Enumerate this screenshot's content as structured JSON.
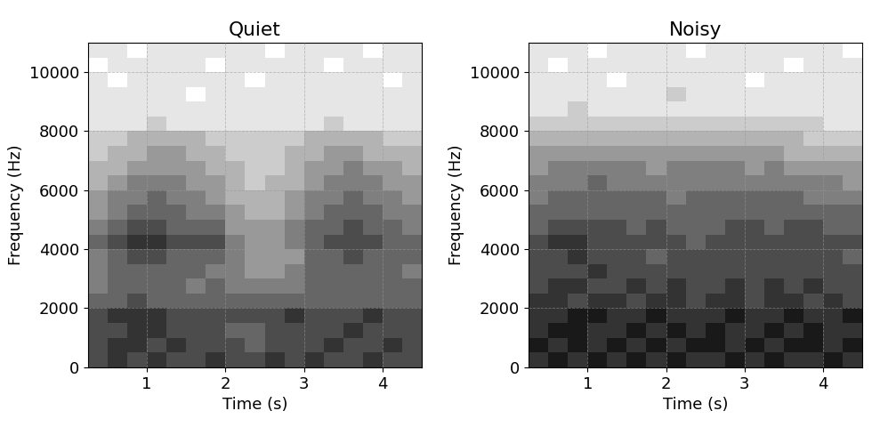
{
  "chart_data": [
    {
      "type": "heatmap",
      "title": "Quiet",
      "x_label": "Time (s)",
      "y_label": "Frequency (Hz)",
      "xlim": [
        0.25,
        4.5
      ],
      "ylim": [
        0,
        11000
      ],
      "xticks": [
        1,
        2,
        3,
        4
      ],
      "yticks": [
        0,
        2000,
        4000,
        6000,
        8000,
        10000
      ],
      "grid": true,
      "time_edges": [
        0.25,
        0.5,
        0.75,
        1.0,
        1.25,
        1.5,
        1.75,
        2.0,
        2.25,
        2.5,
        2.75,
        3.0,
        3.25,
        3.5,
        3.75,
        4.0,
        4.25,
        4.5
      ],
      "frequency_edges": [
        0,
        500,
        1000,
        1500,
        2000,
        2500,
        3000,
        3500,
        4000,
        4500,
        5000,
        5500,
        6000,
        6500,
        7000,
        7500,
        8000,
        8500,
        9000,
        9500,
        10000,
        10500,
        11000
      ],
      "color_range": [
        0,
        10
      ],
      "cells": [
        [
          7,
          8,
          7,
          8,
          7,
          7,
          8,
          7,
          7,
          8,
          7,
          8,
          7,
          7,
          8,
          7,
          7
        ],
        [
          7,
          8,
          8,
          7,
          8,
          7,
          7,
          7,
          6,
          7,
          7,
          7,
          8,
          7,
          7,
          8,
          7
        ],
        [
          7,
          7,
          8,
          8,
          7,
          7,
          7,
          6,
          6,
          7,
          7,
          7,
          7,
          8,
          7,
          7,
          7
        ],
        [
          7,
          8,
          8,
          8,
          7,
          7,
          7,
          7,
          7,
          7,
          8,
          7,
          7,
          7,
          8,
          7,
          7
        ],
        [
          6,
          6,
          7,
          6,
          6,
          6,
          6,
          6,
          6,
          6,
          6,
          6,
          6,
          6,
          6,
          6,
          6
        ],
        [
          5,
          6,
          6,
          6,
          6,
          5,
          6,
          5,
          5,
          5,
          5,
          6,
          6,
          6,
          6,
          6,
          6
        ],
        [
          5,
          6,
          6,
          6,
          6,
          6,
          5,
          5,
          4,
          4,
          5,
          6,
          6,
          6,
          6,
          6,
          5
        ],
        [
          5,
          6,
          7,
          7,
          6,
          6,
          6,
          5,
          4,
          4,
          4,
          6,
          6,
          7,
          6,
          6,
          6
        ],
        [
          6,
          7,
          8,
          8,
          7,
          7,
          7,
          5,
          4,
          4,
          5,
          6,
          7,
          7,
          7,
          6,
          6
        ],
        [
          5,
          6,
          7,
          7,
          6,
          6,
          6,
          4,
          4,
          4,
          5,
          6,
          6,
          7,
          6,
          6,
          5
        ],
        [
          4,
          5,
          6,
          6,
          6,
          5,
          5,
          4,
          3,
          3,
          4,
          5,
          6,
          6,
          6,
          5,
          5
        ],
        [
          4,
          5,
          5,
          6,
          5,
          5,
          4,
          3,
          3,
          3,
          4,
          5,
          5,
          6,
          5,
          5,
          4
        ],
        [
          3,
          4,
          5,
          5,
          5,
          4,
          4,
          3,
          2,
          3,
          3,
          4,
          5,
          5,
          5,
          4,
          4
        ],
        [
          3,
          3,
          4,
          4,
          4,
          4,
          3,
          3,
          2,
          2,
          3,
          4,
          4,
          5,
          4,
          4,
          3
        ],
        [
          2,
          3,
          3,
          4,
          4,
          3,
          3,
          2,
          2,
          2,
          3,
          3,
          4,
          4,
          3,
          3,
          3
        ],
        [
          2,
          2,
          3,
          3,
          3,
          3,
          2,
          2,
          2,
          2,
          2,
          3,
          3,
          3,
          3,
          2,
          2
        ],
        [
          1,
          1,
          1,
          2,
          1,
          1,
          1,
          1,
          1,
          1,
          1,
          1,
          2,
          1,
          1,
          1,
          1
        ],
        [
          1,
          1,
          1,
          1,
          1,
          1,
          1,
          1,
          1,
          1,
          1,
          1,
          1,
          1,
          1,
          1,
          1
        ],
        [
          1,
          1,
          1,
          1,
          1,
          0,
          1,
          1,
          1,
          1,
          1,
          1,
          1,
          1,
          1,
          1,
          1
        ],
        [
          1,
          0,
          1,
          1,
          1,
          1,
          1,
          1,
          0,
          1,
          1,
          1,
          1,
          1,
          1,
          0,
          1
        ],
        [
          0,
          1,
          1,
          1,
          1,
          1,
          0,
          1,
          1,
          1,
          1,
          1,
          0,
          1,
          1,
          1,
          1
        ],
        [
          1,
          1,
          0,
          1,
          1,
          1,
          1,
          1,
          1,
          0,
          1,
          1,
          1,
          1,
          0,
          1,
          1
        ]
      ]
    },
    {
      "type": "heatmap",
      "title": "Noisy",
      "x_label": "Time (s)",
      "y_label": "Frequency (Hz)",
      "xlim": [
        0.25,
        4.5
      ],
      "ylim": [
        0,
        11000
      ],
      "xticks": [
        1,
        2,
        3,
        4
      ],
      "yticks": [
        0,
        2000,
        4000,
        6000,
        8000,
        10000
      ],
      "grid": true,
      "time_edges": [
        0.25,
        0.5,
        0.75,
        1.0,
        1.25,
        1.5,
        1.75,
        2.0,
        2.25,
        2.5,
        2.75,
        3.0,
        3.25,
        3.5,
        3.75,
        4.0,
        4.25,
        4.5
      ],
      "frequency_edges": [
        0,
        500,
        1000,
        1500,
        2000,
        2500,
        3000,
        3500,
        4000,
        4500,
        5000,
        5500,
        6000,
        6500,
        7000,
        7500,
        8000,
        8500,
        9000,
        9500,
        10000,
        10500,
        11000
      ],
      "color_range": [
        0,
        10
      ],
      "cells": [
        [
          8,
          9,
          8,
          9,
          8,
          9,
          8,
          9,
          8,
          8,
          9,
          8,
          9,
          8,
          8,
          9,
          8
        ],
        [
          9,
          8,
          9,
          8,
          9,
          8,
          9,
          8,
          9,
          9,
          8,
          9,
          8,
          9,
          9,
          8,
          9
        ],
        [
          8,
          9,
          9,
          8,
          8,
          9,
          8,
          9,
          8,
          9,
          8,
          8,
          9,
          8,
          9,
          8,
          8
        ],
        [
          8,
          8,
          9,
          9,
          8,
          8,
          9,
          8,
          8,
          8,
          9,
          8,
          8,
          9,
          8,
          8,
          9
        ],
        [
          8,
          8,
          7,
          8,
          8,
          7,
          8,
          8,
          7,
          8,
          8,
          7,
          8,
          8,
          7,
          8,
          7
        ],
        [
          7,
          8,
          8,
          7,
          7,
          8,
          7,
          8,
          7,
          7,
          8,
          7,
          8,
          7,
          8,
          7,
          7
        ],
        [
          7,
          7,
          7,
          8,
          7,
          7,
          7,
          7,
          7,
          7,
          7,
          7,
          7,
          7,
          7,
          7,
          7
        ],
        [
          7,
          7,
          8,
          7,
          7,
          7,
          6,
          7,
          7,
          7,
          7,
          7,
          7,
          7,
          7,
          7,
          6
        ],
        [
          7,
          8,
          8,
          7,
          7,
          7,
          7,
          7,
          6,
          7,
          7,
          7,
          7,
          7,
          7,
          7,
          7
        ],
        [
          6,
          7,
          7,
          7,
          7,
          6,
          7,
          6,
          6,
          6,
          7,
          7,
          6,
          7,
          7,
          6,
          6
        ],
        [
          6,
          6,
          6,
          6,
          6,
          6,
          6,
          6,
          6,
          6,
          6,
          6,
          6,
          6,
          6,
          6,
          6
        ],
        [
          5,
          6,
          6,
          6,
          6,
          6,
          6,
          5,
          6,
          6,
          6,
          6,
          6,
          6,
          5,
          5,
          5
        ],
        [
          5,
          5,
          5,
          6,
          5,
          5,
          5,
          5,
          5,
          5,
          5,
          5,
          5,
          5,
          5,
          5,
          4
        ],
        [
          4,
          5,
          5,
          5,
          5,
          5,
          4,
          5,
          5,
          5,
          5,
          4,
          5,
          4,
          4,
          4,
          4
        ],
        [
          4,
          4,
          4,
          4,
          4,
          4,
          4,
          4,
          4,
          4,
          4,
          4,
          4,
          3,
          3,
          3,
          3
        ],
        [
          3,
          3,
          3,
          3,
          3,
          3,
          3,
          3,
          3,
          3,
          3,
          3,
          3,
          3,
          2,
          2,
          2
        ],
        [
          2,
          2,
          2,
          2,
          2,
          2,
          2,
          2,
          2,
          2,
          2,
          2,
          2,
          2,
          2,
          1,
          1
        ],
        [
          1,
          1,
          2,
          1,
          1,
          1,
          1,
          1,
          1,
          1,
          1,
          1,
          1,
          1,
          1,
          1,
          1
        ],
        [
          1,
          1,
          1,
          1,
          1,
          1,
          1,
          2,
          1,
          1,
          1,
          1,
          1,
          1,
          1,
          1,
          1
        ],
        [
          1,
          1,
          1,
          1,
          0,
          1,
          1,
          1,
          1,
          1,
          1,
          0,
          1,
          1,
          1,
          1,
          1
        ],
        [
          1,
          0,
          1,
          1,
          1,
          1,
          1,
          1,
          1,
          1,
          1,
          1,
          1,
          0,
          1,
          1,
          1
        ],
        [
          1,
          1,
          1,
          0,
          1,
          1,
          1,
          1,
          0,
          1,
          1,
          1,
          1,
          1,
          1,
          1,
          0
        ]
      ]
    }
  ]
}
